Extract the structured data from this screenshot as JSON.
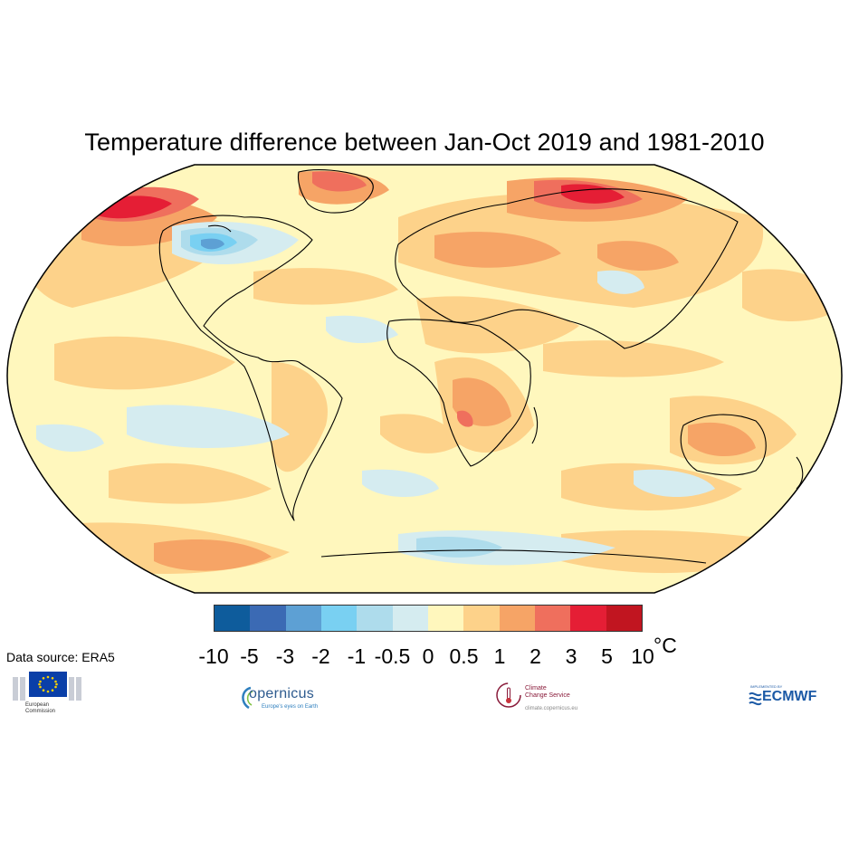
{
  "title": "Temperature difference between Jan-Oct 2019 and 1981-2010",
  "legend": {
    "colors": [
      "#0e5c9c",
      "#3b6ab4",
      "#5da0d4",
      "#79d0f2",
      "#aedcec",
      "#d5ecf0",
      "#fff7bd",
      "#fdd28a",
      "#f6a466",
      "#ef6f5d",
      "#e51e35",
      "#c11520"
    ],
    "ticks": [
      "-10",
      "-5",
      "-3",
      "-2",
      "-1",
      "-0.5",
      "0",
      "0.5",
      "1",
      "2",
      "3",
      "5",
      "10"
    ],
    "unit": "°C"
  },
  "data_source": "Data source: ERA5",
  "logos": {
    "eu": {
      "lines": [
        "European",
        "Commission"
      ]
    },
    "copernicus": {
      "name": "opernicus",
      "tagline": "Europe's eyes on Earth"
    },
    "c3s": {
      "lines": [
        "Climate",
        "Change Service"
      ],
      "url": "climate.copernicus.eu"
    },
    "ecmwf": {
      "small": "IMPLEMENTED BY",
      "name": "ECMWF"
    }
  }
}
